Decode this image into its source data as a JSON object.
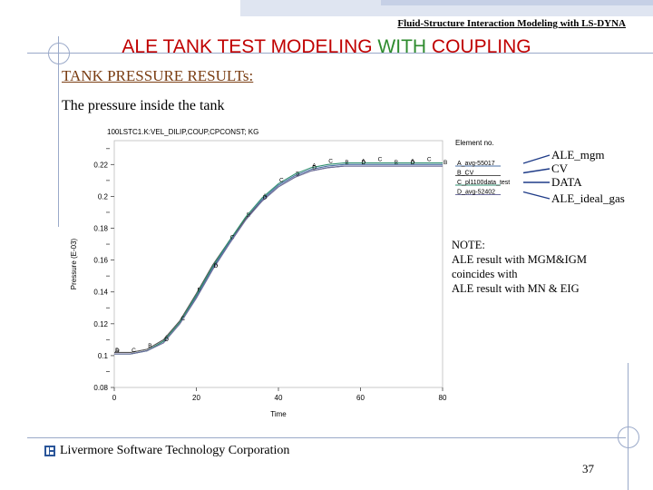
{
  "slide": {
    "header_title": "Fluid-Structure Interaction Modeling with LS-DYNA",
    "title_part1": "ALE TANK TEST MODELING ",
    "title_part2": "WITH",
    "title_part3": " COUPLING",
    "section_title": "TANK PRESSURE RESULTs:",
    "subtitle": "The pressure inside the tank",
    "footer_text": "Livermore Software Technology Corporation",
    "page_number": "37",
    "colors": {
      "title": "#c00000",
      "with": "#2e8b2e",
      "section": "#7a3d12",
      "decor": "#9aa9c9"
    }
  },
  "note": {
    "lines": [
      "NOTE:",
      "ALE result with MGM&IGM",
      "coincides with",
      "ALE result with  MN & EIG"
    ]
  },
  "chart_data": {
    "type": "line",
    "title": "100LSTC1.K:VEL_DILIP,COUP,CPCONST; KG",
    "xlabel": "Time",
    "ylabel": "Pressure (E-03)",
    "xlim": [
      0,
      80
    ],
    "ylim": [
      0.08,
      0.235
    ],
    "xticks": [
      "0",
      "20",
      "40",
      "60",
      "80"
    ],
    "yticks": [
      "0.08",
      "0.1",
      "0.12",
      "0.14",
      "0.16",
      "0.18",
      "0.2",
      "0.22"
    ],
    "legend_title": "Element no.",
    "legend_position": "right",
    "series": [
      {
        "name": "A_avg-55017",
        "marker": "A",
        "color": "#4a6fa5",
        "x": [
          0,
          4,
          8,
          12,
          16,
          20,
          24,
          28,
          32,
          36,
          40,
          44,
          48,
          52,
          56,
          60,
          64,
          68,
          72,
          76,
          80
        ],
        "y": [
          0.101,
          0.101,
          0.103,
          0.109,
          0.121,
          0.137,
          0.155,
          0.171,
          0.186,
          0.198,
          0.207,
          0.213,
          0.217,
          0.219,
          0.22,
          0.22,
          0.22,
          0.22,
          0.22,
          0.22,
          0.22
        ]
      },
      {
        "name": "B_CV",
        "marker": "B",
        "color": "#555555",
        "x": [
          0,
          4,
          8,
          12,
          16,
          20,
          24,
          28,
          32,
          36,
          40,
          44,
          48,
          52,
          56,
          60,
          64,
          68,
          72,
          76,
          80
        ],
        "y": [
          0.102,
          0.102,
          0.104,
          0.11,
          0.122,
          0.139,
          0.157,
          0.172,
          0.186,
          0.197,
          0.206,
          0.212,
          0.216,
          0.218,
          0.219,
          0.219,
          0.219,
          0.219,
          0.219,
          0.219,
          0.219
        ]
      },
      {
        "name": "C_pl1100data_test",
        "marker": "C",
        "color": "#2f8f6f",
        "x": [
          0,
          4,
          8,
          12,
          16,
          20,
          24,
          28,
          32,
          36,
          40,
          44,
          48,
          52,
          56,
          60,
          64,
          68,
          72,
          76,
          80
        ],
        "y": [
          0.101,
          0.101,
          0.103,
          0.109,
          0.121,
          0.138,
          0.156,
          0.172,
          0.187,
          0.199,
          0.208,
          0.214,
          0.218,
          0.22,
          0.221,
          0.221,
          0.221,
          0.221,
          0.221,
          0.221,
          0.221
        ]
      },
      {
        "name": "D_avg-52402",
        "marker": "D",
        "color": "#6e6e9e",
        "x": [
          0,
          4,
          8,
          12,
          16,
          20,
          24,
          28,
          32,
          36,
          40,
          44,
          48,
          52,
          56,
          60,
          64,
          68,
          72,
          76,
          80
        ],
        "y": [
          0.101,
          0.101,
          0.103,
          0.108,
          0.12,
          0.136,
          0.154,
          0.17,
          0.185,
          0.197,
          0.206,
          0.212,
          0.216,
          0.218,
          0.219,
          0.219,
          0.219,
          0.219,
          0.219,
          0.219,
          0.219
        ]
      }
    ],
    "annotations": [
      "ALE_mgm",
      "CV",
      "DATA",
      "ALE_ideal_gas"
    ]
  }
}
